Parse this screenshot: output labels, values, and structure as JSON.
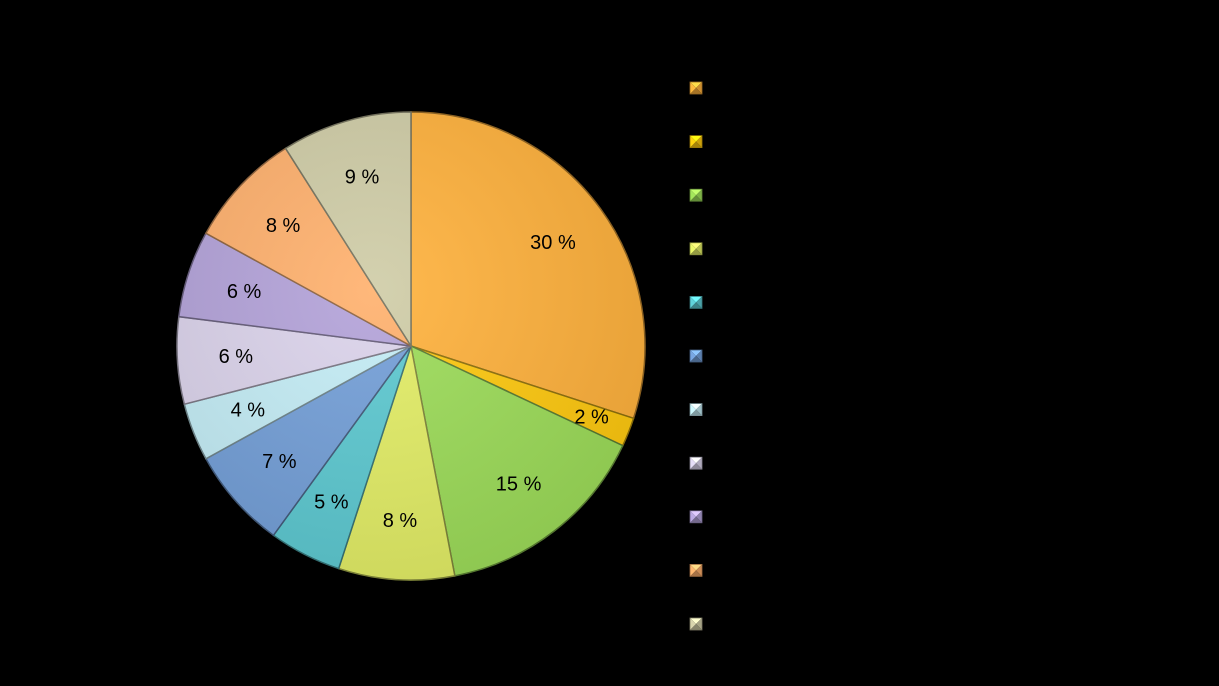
{
  "chart_data": {
    "type": "pie",
    "title": "",
    "start_angle_deg": 0,
    "direction": "clockwise",
    "legend_placement": "right",
    "slices": [
      {
        "name": "",
        "value": 30,
        "label": "30 %",
        "color": "#FFB13B"
      },
      {
        "name": "",
        "value": 2,
        "label": "2 %",
        "color": "#FFC90E"
      },
      {
        "name": "",
        "value": 15,
        "label": "15 %",
        "color": "#9CDC58"
      },
      {
        "name": "",
        "value": 8,
        "label": "8 %",
        "color": "#E3EE65"
      },
      {
        "name": "",
        "value": 5,
        "label": "5 %",
        "color": "#5CC9D1"
      },
      {
        "name": "",
        "value": 7,
        "label": "7 %",
        "color": "#739FD8"
      },
      {
        "name": "",
        "value": 4,
        "label": "4 %",
        "color": "#C4EDF6"
      },
      {
        "name": "",
        "value": 6,
        "label": "6 %",
        "color": "#DBD3EB"
      },
      {
        "name": "",
        "value": 6,
        "label": "6 %",
        "color": "#B3A2D9"
      },
      {
        "name": "",
        "value": 8,
        "label": "8 %",
        "color": "#FFB06C"
      },
      {
        "name": "",
        "value": 9,
        "label": "9 %",
        "color": "#CFCCA6"
      }
    ]
  }
}
